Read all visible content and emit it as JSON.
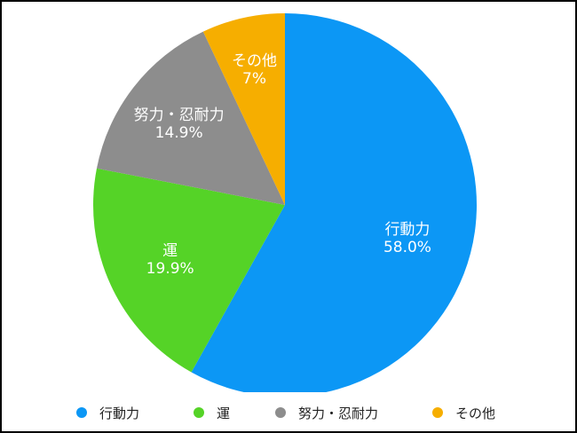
{
  "chart_data": {
    "type": "pie",
    "slices": [
      {
        "name": "行動力",
        "value": 58.0,
        "label": "58.0%",
        "color": "#0C97F5"
      },
      {
        "name": "運",
        "value": 19.9,
        "label": "19.9%",
        "color": "#55D327"
      },
      {
        "name": "努力・忍耐力",
        "value": 14.9,
        "label": "14.9%",
        "color": "#8D8D8D"
      },
      {
        "name": "その他",
        "value": 7,
        "label": "7%",
        "color": "#F6AE00"
      }
    ],
    "legend_position": "bottom",
    "start_angle": "top",
    "direction": "clockwise"
  }
}
